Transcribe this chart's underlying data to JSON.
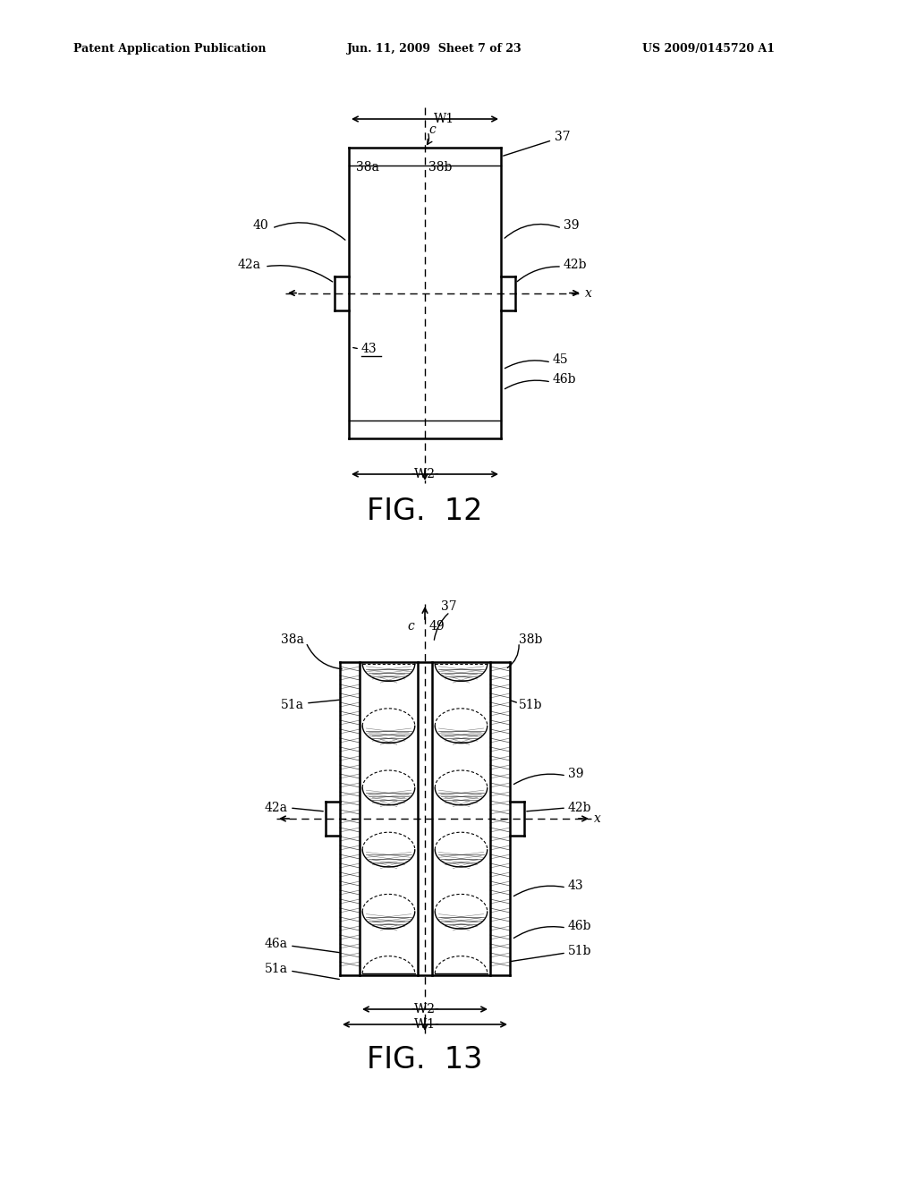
{
  "bg_color": "#ffffff",
  "line_color": "#000000",
  "header_left": "Patent Application Publication",
  "header_mid": "Jun. 11, 2009  Sheet 7 of 23",
  "header_right": "US 2009/0145720 A1",
  "fig12_caption": "FIG.  12",
  "fig13_caption": "FIG.  13"
}
